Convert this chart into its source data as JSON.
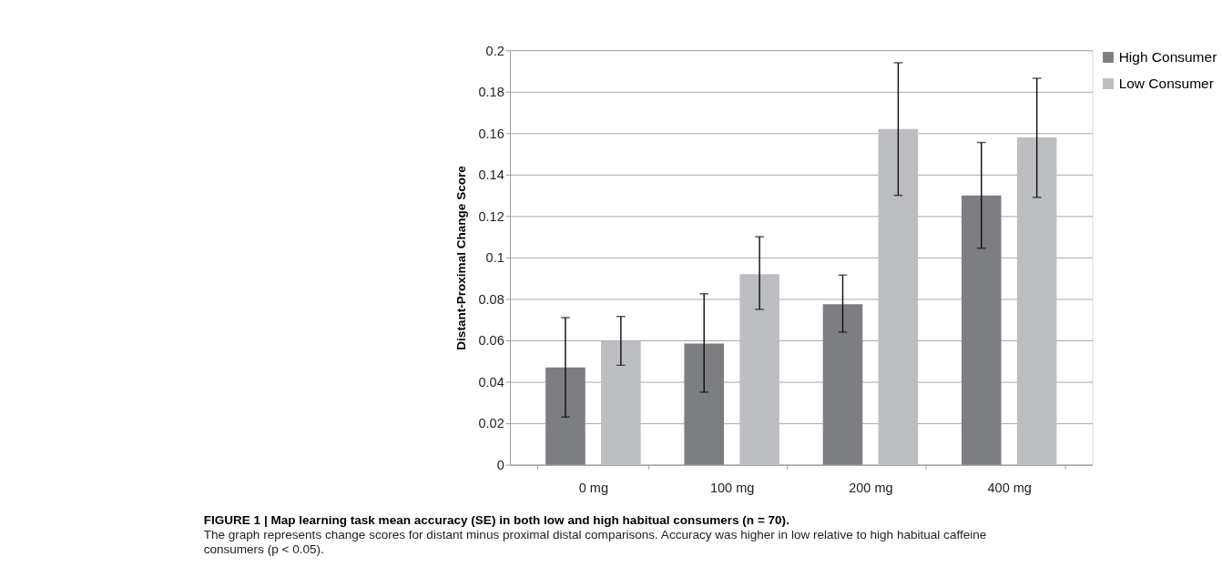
{
  "chart_data": {
    "type": "bar",
    "title": "FIGURE 1 | Map learning task mean accuracy (SE) in both low and high habitual consumers (n = 70).",
    "annotations": [
      "The graph represents change scores for distant minus proximal distal comparisons. Accuracy was higher in low relative to high habitual caffeine consumers (p < 0.05)."
    ],
    "ylabel": "Distant-Proximal  Change Score",
    "categories": [
      "0 mg",
      "100 mg",
      "200 mg",
      "400 mg"
    ],
    "series": [
      {
        "name": "High Consumer",
        "color": "#7d7e82",
        "values": [
          0.047,
          0.0585,
          0.0775,
          0.13
        ],
        "errors": [
          [
            0.023,
            0.071
          ],
          [
            0.035,
            0.0825
          ],
          [
            0.064,
            0.0915
          ],
          [
            0.1045,
            0.1555
          ]
        ]
      },
      {
        "name": "Low Consumer",
        "color": "#bdbec1",
        "values": [
          0.0597,
          0.092,
          0.162,
          0.158
        ],
        "errors": [
          [
            0.048,
            0.0715
          ],
          [
            0.075,
            0.11
          ],
          [
            0.13,
            0.194
          ],
          [
            0.129,
            0.1865
          ]
        ]
      }
    ],
    "ylim": [
      0,
      0.2
    ],
    "yticks": [
      0,
      0.02,
      0.04,
      0.06,
      0.08,
      0.1,
      0.12,
      0.14,
      0.16,
      0.18,
      0.2
    ],
    "grid": "y",
    "legend": "right"
  }
}
